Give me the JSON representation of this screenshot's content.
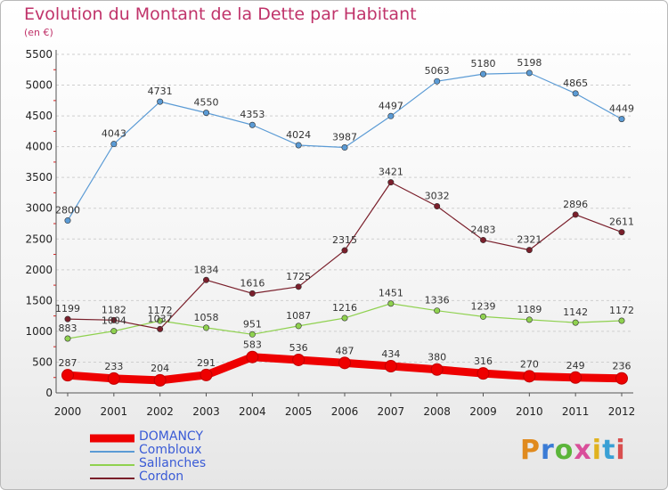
{
  "title": "Evolution du Montant de la Dette par Habitant",
  "subtitle": "(en €)",
  "logo": "Proxiti",
  "colors": {
    "title": "#c0336a",
    "legend_text": "#3a5bd6",
    "grid": "#cfcfcf",
    "axis": "#555555",
    "tick_red": "#d81b1b"
  },
  "chart_data": {
    "type": "line",
    "x": [
      2000,
      2001,
      2002,
      2003,
      2004,
      2005,
      2006,
      2007,
      2008,
      2009,
      2010,
      2011,
      2012
    ],
    "ylim": [
      0,
      5500
    ],
    "yticks": [
      0,
      500,
      1000,
      1500,
      2000,
      2500,
      3000,
      3500,
      4000,
      4500,
      5000,
      5500
    ],
    "grid": "horizontal dashed",
    "legend": "bottom-left",
    "series": [
      {
        "name": "DOMANCY",
        "color": "#ee0000",
        "values": [
          287,
          233,
          204,
          291,
          583,
          536,
          487,
          434,
          380,
          316,
          270,
          249,
          236
        ]
      },
      {
        "name": "Combloux",
        "color": "#5b9bd5",
        "values": [
          2800,
          4043,
          4731,
          4550,
          4353,
          4024,
          3987,
          4497,
          5063,
          5180,
          5198,
          4865,
          4449
        ]
      },
      {
        "name": "Sallanches",
        "color": "#8fd14f",
        "values": [
          883,
          1004,
          1172,
          1058,
          951,
          1087,
          1216,
          1451,
          1336,
          1239,
          1189,
          1142,
          1172
        ]
      },
      {
        "name": "Cordon",
        "color": "#7a1f2b",
        "values": [
          1199,
          1182,
          1037,
          1834,
          1616,
          1725,
          2315,
          3421,
          3032,
          2483,
          2321,
          2896,
          2611
        ]
      }
    ]
  }
}
